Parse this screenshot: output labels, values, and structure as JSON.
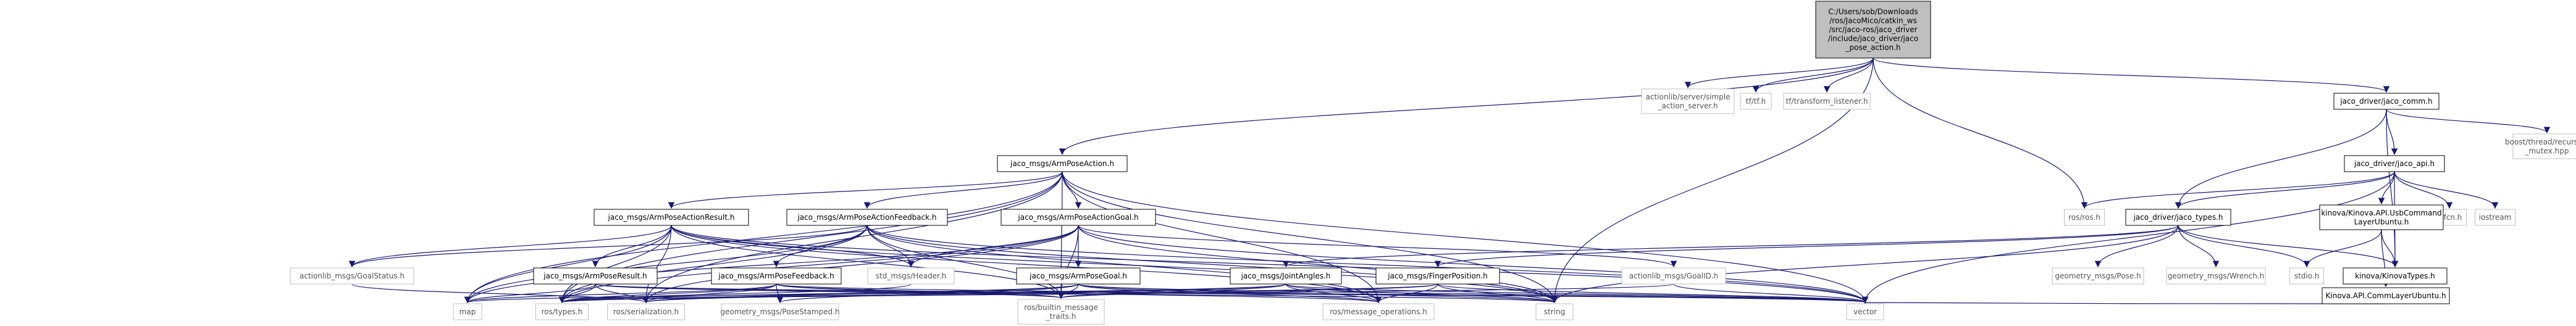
{
  "graph": {
    "root": [
      "C:/Users/sob/Downloads",
      "/ros/JacoMico/catkin_ws",
      "/src/jaco-ros/jaco_driver",
      "/include/jaco_driver/jaco",
      "_pose_action.h"
    ],
    "nodes": {
      "actionlib_server": [
        "actionlib/server/simple",
        "_action_server.h"
      ],
      "tf": [
        "tf/tf.h"
      ],
      "tf_listener": [
        "tf/transform_listener.h"
      ],
      "jaco_comm": [
        "jaco_driver/jaco_comm.h"
      ],
      "boost_mutex": [
        "boost/thread/recursive",
        "_mutex.hpp"
      ],
      "arm_pose_action": [
        "jaco_msgs/ArmPoseAction.h"
      ],
      "jaco_api": [
        "jaco_driver/jaco_api.h"
      ],
      "dlfcn": [
        "dlfcn.h"
      ],
      "iostream": [
        "iostream"
      ],
      "ros_ros": [
        "ros/ros.h"
      ],
      "jaco_types": [
        "jaco_driver/jaco_types.h"
      ],
      "kinova_usb": [
        "kinova/Kinova.API.UsbCommand",
        "LayerUbuntu.h"
      ],
      "action_result": [
        "jaco_msgs/ArmPoseActionResult.h"
      ],
      "action_feedback": [
        "jaco_msgs/ArmPoseActionFeedback.h"
      ],
      "action_goal": [
        "jaco_msgs/ArmPoseActionGoal.h"
      ],
      "goal_status": [
        "actionlib_msgs/GoalStatus.h"
      ],
      "std_header": [
        "std_msgs/Header.h"
      ],
      "goal_id": [
        "actionlib_msgs/GoalID.h"
      ],
      "geom_pose": [
        "geometry_msgs/Pose.h"
      ],
      "geom_wrench": [
        "geometry_msgs/Wrench.h"
      ],
      "stdio": [
        "stdio.h"
      ],
      "kinova_types": [
        "kinova/KinovaTypes.h"
      ],
      "joint_angles": [
        "jaco_msgs/JointAngles.h"
      ],
      "finger_position": [
        "jaco_msgs/FingerPosition.h"
      ],
      "kinova_comm": [
        "Kinova.API.CommLayerUbuntu.h"
      ],
      "pose_result": [
        "jaco_msgs/ArmPoseResult.h"
      ],
      "pose_feedback": [
        "jaco_msgs/ArmPoseFeedback.h"
      ],
      "pose_goal": [
        "jaco_msgs/ArmPoseGoal.h"
      ],
      "map": [
        "map"
      ],
      "ros_types": [
        "ros/types.h"
      ],
      "ros_serialization": [
        "ros/serialization.h"
      ],
      "pose_stamped": [
        "geometry_msgs/PoseStamped.h"
      ],
      "builtin_traits": [
        "ros/builtin_message",
        "_traits.h"
      ],
      "message_operations": [
        "ros/message_operations.h"
      ],
      "string": [
        "string"
      ],
      "vector": [
        "vector"
      ]
    }
  }
}
